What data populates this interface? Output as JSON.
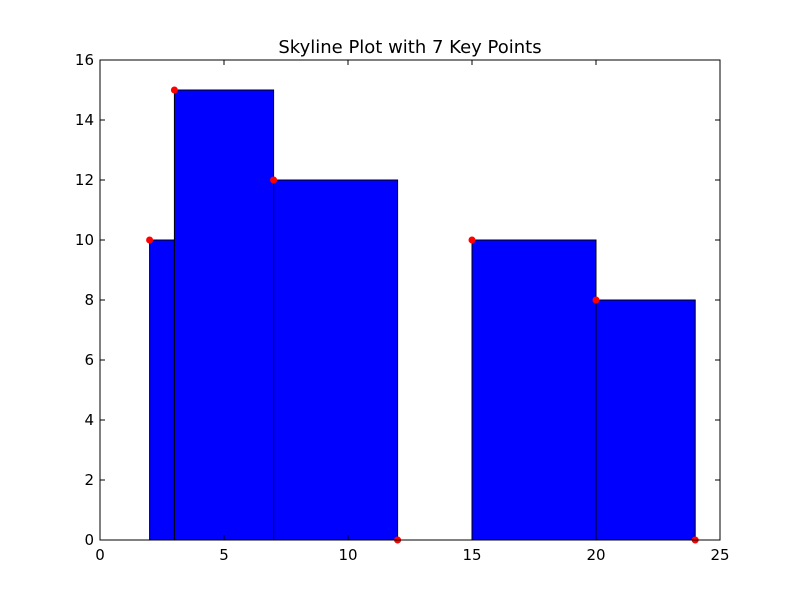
{
  "chart_data": {
    "type": "bar",
    "title": "Skyline Plot with 7 Key Points",
    "xlim": [
      0,
      25
    ],
    "ylim": [
      0,
      16
    ],
    "xticks": [
      0,
      5,
      10,
      15,
      20,
      25
    ],
    "yticks": [
      0,
      2,
      4,
      6,
      8,
      10,
      12,
      14,
      16
    ],
    "grid": false,
    "bars": [
      {
        "x_start": 2,
        "x_end": 3,
        "height": 10
      },
      {
        "x_start": 3,
        "x_end": 7,
        "height": 15
      },
      {
        "x_start": 7,
        "x_end": 12,
        "height": 12
      },
      {
        "x_start": 15,
        "x_end": 20,
        "height": 10
      },
      {
        "x_start": 20,
        "x_end": 24,
        "height": 8
      }
    ],
    "key_points": [
      {
        "x": 2,
        "y": 10
      },
      {
        "x": 3,
        "y": 15
      },
      {
        "x": 7,
        "y": 12
      },
      {
        "x": 12,
        "y": 0
      },
      {
        "x": 15,
        "y": 10
      },
      {
        "x": 20,
        "y": 8
      },
      {
        "x": 24,
        "y": 0
      }
    ],
    "colors": {
      "bar_fill": "#0000ff",
      "bar_edge": "#000000",
      "point_fill": "#ff0000"
    }
  }
}
